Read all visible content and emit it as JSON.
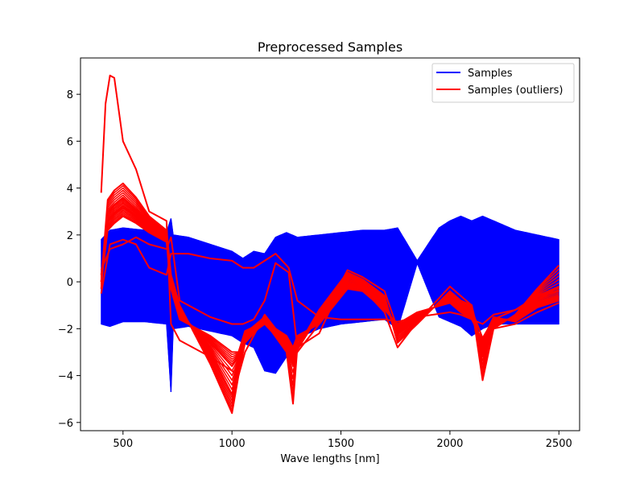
{
  "chart_data": {
    "type": "line",
    "title": "Preprocessed Samples",
    "xlabel": "Wave lengths [nm]",
    "ylabel": "",
    "xlim": [
      305,
      2595
    ],
    "ylim": [
      -6.35,
      9.55
    ],
    "xticks": [
      500,
      1000,
      1500,
      2000,
      2500
    ],
    "yticks": [
      -6,
      -4,
      -2,
      0,
      2,
      4,
      6,
      8
    ],
    "grid": false,
    "legend_position": "top-right",
    "series": [
      {
        "name": "Samples",
        "color": "#0000ff",
        "approximate_envelope": {
          "x": [
            400,
            440,
            500,
            600,
            700,
            720,
            730,
            800,
            900,
            1000,
            1050,
            1100,
            1150,
            1200,
            1250,
            1300,
            1400,
            1500,
            1600,
            1700,
            1760,
            1850,
            1950,
            2000,
            2050,
            2100,
            2150,
            2200,
            2300,
            2400,
            2500
          ],
          "upper": [
            1.8,
            2.2,
            2.3,
            2.2,
            2.1,
            2.7,
            2.0,
            1.9,
            1.6,
            1.3,
            1.0,
            1.3,
            1.2,
            1.9,
            2.1,
            1.9,
            2.0,
            2.1,
            2.2,
            2.2,
            2.3,
            0.9,
            2.3,
            2.6,
            2.8,
            2.6,
            2.8,
            2.6,
            2.2,
            2.0,
            1.8
          ],
          "lower": [
            -1.8,
            -1.9,
            -1.7,
            -1.7,
            -1.8,
            -4.7,
            -2.0,
            -1.9,
            -2.1,
            -2.3,
            -2.6,
            -2.8,
            -3.8,
            -3.9,
            -3.2,
            -2.4,
            -2.0,
            -1.8,
            -1.7,
            -1.6,
            -2.0,
            0.8,
            -1.5,
            -1.7,
            -1.9,
            -2.3,
            -2.0,
            -1.8,
            -1.8,
            -1.8,
            -1.8
          ]
        }
      },
      {
        "name": "Samples (outliers)",
        "color": "#ff0000",
        "lines": [
          {
            "x": [
              400,
              420,
              440,
              460,
              500,
              560,
              620,
              700,
              720,
              760,
              900,
              1000,
              1030,
              1060,
              1150,
              1250,
              1300,
              1400,
              1530,
              1600,
              1700,
              1760,
              1850,
              2000,
              2050,
              2100,
              2150,
              2200,
              2300,
              2400,
              2500
            ],
            "y": [
              3.8,
              7.6,
              8.8,
              8.7,
              6.0,
              4.8,
              3.0,
              2.6,
              -1.8,
              -2.5,
              -3.2,
              -3.8,
              -4.0,
              -3.0,
              -1.4,
              -2.6,
              -3.0,
              -1.8,
              0.5,
              0.2,
              -0.4,
              -2.0,
              -1.6,
              -0.6,
              -1.0,
              -1.2,
              -2.4,
              -1.6,
              -1.2,
              -0.6,
              -0.4
            ]
          },
          {
            "x": [
              400,
              430,
              460,
              500,
              560,
              620,
              700,
              720,
              760,
              900,
              1000,
              1030,
              1060,
              1150,
              1250,
              1280,
              1300,
              1400,
              1530,
              1600,
              1700,
              1760,
              1850,
              2000,
              2050,
              2100,
              2150,
              2200,
              2300,
              2400,
              2500
            ],
            "y": [
              0.0,
              3.5,
              3.9,
              4.2,
              3.6,
              2.8,
              2.2,
              0.3,
              -1.0,
              -3.5,
              -5.6,
              -4.0,
              -2.6,
              -1.7,
              -3.0,
              -5.2,
              -2.8,
              -1.2,
              0.4,
              0.1,
              -0.6,
              -2.6,
              -1.8,
              -0.4,
              -0.8,
              -1.0,
              -4.2,
              -2.0,
              -1.4,
              -0.3,
              0.7
            ]
          },
          {
            "x": [
              400,
              430,
              460,
              500,
              560,
              620,
              700,
              720,
              760,
              900,
              1000,
              1030,
              1060,
              1150,
              1250,
              1280,
              1300,
              1400,
              1530,
              1600,
              1700,
              1760,
              1850,
              2000,
              2050,
              2100,
              2150,
              2200,
              2300,
              2400,
              2500
            ],
            "y": [
              -0.3,
              3.0,
              3.3,
              3.6,
              3.1,
              2.5,
              2.0,
              0.1,
              -1.2,
              -3.0,
              -4.8,
              -3.6,
              -2.4,
              -1.8,
              -2.8,
              -3.6,
              -2.9,
              -1.4,
              0.2,
              0.0,
              -0.8,
              -2.2,
              -1.6,
              -0.6,
              -1.0,
              -1.3,
              -3.2,
              -1.8,
              -1.5,
              -0.6,
              -0.2
            ]
          },
          {
            "x": [
              400,
              430,
              460,
              500,
              560,
              620,
              700,
              720,
              760,
              900,
              1000,
              1030,
              1060,
              1150,
              1250,
              1280,
              1300,
              1400,
              1530,
              1600,
              1700,
              1760,
              1850,
              2000,
              2050,
              2100,
              2150,
              2200,
              2300,
              2400,
              2500
            ],
            "y": [
              0.3,
              2.6,
              2.9,
              3.2,
              2.8,
              2.3,
              1.9,
              -0.1,
              -1.4,
              -2.6,
              -3.6,
              -3.2,
              -2.2,
              -1.5,
              -2.5,
              -3.1,
              -2.5,
              -1.6,
              -0.1,
              -0.2,
              -1.0,
              -2.0,
              -1.4,
              -0.8,
              -1.2,
              -1.5,
              -2.8,
              -1.6,
              -1.6,
              -0.9,
              -0.6
            ]
          },
          {
            "x": [
              400,
              430,
              460,
              500,
              560,
              620,
              700,
              720,
              760,
              900,
              1000,
              1030,
              1060,
              1150,
              1250,
              1280,
              1300,
              1400,
              1530,
              1600,
              1700,
              1760,
              1850,
              2000,
              2050,
              2100,
              2150,
              2200,
              2300,
              2400,
              2500
            ],
            "y": [
              0.0,
              2.2,
              2.5,
              2.8,
              2.5,
              2.1,
              1.7,
              -0.3,
              -1.6,
              -2.3,
              -3.0,
              -3.0,
              -2.1,
              -1.7,
              -2.3,
              -2.8,
              -2.3,
              -1.8,
              -0.3,
              -0.4,
              -1.2,
              -1.8,
              -1.3,
              -0.9,
              -1.3,
              -1.6,
              -2.5,
              -1.5,
              -1.7,
              -1.1,
              -0.8
            ]
          },
          {
            "x": [
              400,
              440,
              500,
              560,
              620,
              700,
              720,
              740,
              800,
              900,
              1000,
              1050,
              1100,
              1150,
              1200,
              1260,
              1300,
              1400,
              1500,
              1600,
              1700,
              1760,
              1850,
              2000,
              2050,
              2100,
              2150,
              2200,
              2300,
              2400,
              2500
            ],
            "y": [
              -0.5,
              1.6,
              1.8,
              1.6,
              0.6,
              0.3,
              1.2,
              1.2,
              1.2,
              1.0,
              0.9,
              0.6,
              0.6,
              0.9,
              1.2,
              0.6,
              -0.8,
              -1.5,
              -1.6,
              -1.6,
              -1.6,
              -1.7,
              -1.5,
              -1.3,
              -1.4,
              -1.6,
              -1.8,
              -1.4,
              -1.2,
              -0.8,
              -0.2
            ]
          },
          {
            "x": [
              400,
              440,
              500,
              560,
              620,
              700,
              720,
              760,
              900,
              1000,
              1050,
              1100,
              1150,
              1200,
              1260,
              1300,
              1400,
              1500,
              1600,
              1700,
              1760,
              1850,
              2000,
              2050,
              2100,
              2150,
              2200,
              2300,
              2400,
              2500
            ],
            "y": [
              0.5,
              1.4,
              1.6,
              1.9,
              1.6,
              1.4,
              1.9,
              -0.8,
              -1.5,
              -1.8,
              -1.8,
              -1.6,
              -0.8,
              0.8,
              0.4,
              -2.8,
              -2.2,
              -0.2,
              -0.3,
              -1.3,
              -2.8,
              -1.7,
              -0.2,
              -0.6,
              -1.0,
              -3.0,
              -2.0,
              -1.8,
              -1.3,
              -0.9
            ]
          }
        ]
      }
    ],
    "legend": [
      {
        "label": "Samples",
        "color": "#0000ff"
      },
      {
        "label": "Samples (outliers)",
        "color": "#ff0000"
      }
    ]
  }
}
